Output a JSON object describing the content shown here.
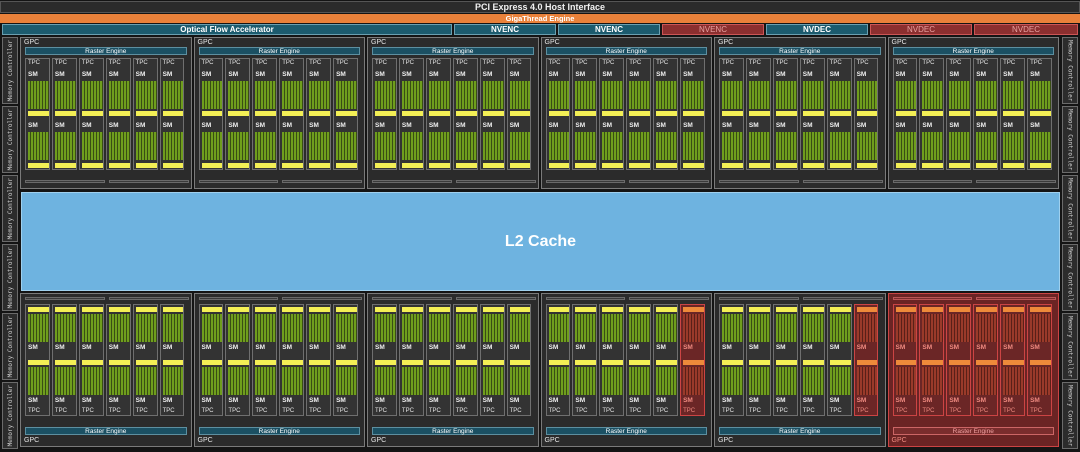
{
  "header": {
    "host_interface": "PCI Express 4.0 Host Interface",
    "gigathread": "GigaThread Engine"
  },
  "engines": [
    {
      "label": "Optical Flow Accelerator",
      "state": "ok"
    },
    {
      "label": "NVENC",
      "state": "ok"
    },
    {
      "label": "NVENC",
      "state": "ok"
    },
    {
      "label": "NVENC",
      "state": "off"
    },
    {
      "label": "NVDEC",
      "state": "ok"
    },
    {
      "label": "NVDEC",
      "state": "off"
    },
    {
      "label": "NVDEC",
      "state": "off"
    }
  ],
  "l2_cache": "L2 Cache",
  "labels": {
    "gpc": "GPC",
    "tpc": "TPC",
    "sm": "SM",
    "raster_engine": "Raster Engine",
    "memory_controller": "Memory Controller"
  },
  "memory_controllers": {
    "left": 6,
    "right": 6
  },
  "gpcs": {
    "top": [
      {
        "disabled_tpcs": []
      },
      {
        "disabled_tpcs": []
      },
      {
        "disabled_tpcs": []
      },
      {
        "disabled_tpcs": []
      },
      {
        "disabled_tpcs": []
      },
      {
        "disabled_tpcs": []
      }
    ],
    "bottom": [
      {
        "disabled_tpcs": []
      },
      {
        "disabled_tpcs": []
      },
      {
        "disabled_tpcs": []
      },
      {
        "disabled_tpcs": [
          5
        ]
      },
      {
        "disabled_tpcs": [
          5
        ]
      },
      {
        "disabled_tpcs": [
          0,
          1,
          2,
          3,
          4,
          5
        ],
        "disabled": true
      }
    ]
  },
  "colors": {
    "accent_orange": "#e9813a",
    "engine_teal": "#1c5b6e",
    "disabled_red": "#8c2f2f",
    "l2_blue": "#6eb3e0",
    "core_green": "#6f9e1d",
    "cache_yellow": "#f3ef55"
  }
}
